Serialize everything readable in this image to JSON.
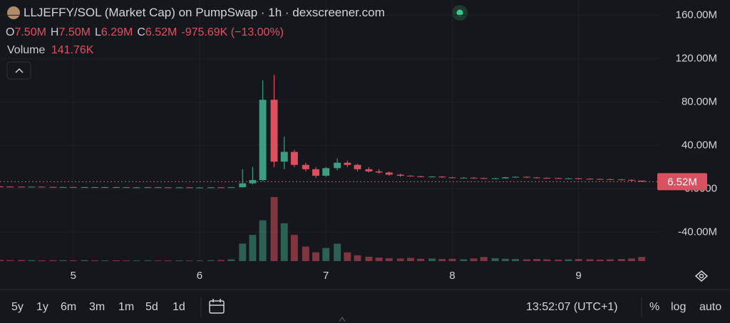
{
  "header": {
    "title": "LLJEFFY/SOL (Market Cap) on PumpSwap · 1h · dexscreener.com",
    "ohlc": [
      {
        "key": "O",
        "value": "7.50M"
      },
      {
        "key": "H",
        "value": "7.50M"
      },
      {
        "key": "L",
        "value": "6.29M"
      },
      {
        "key": "C",
        "value": "6.52M"
      }
    ],
    "change": "-975.69K (−13.00%)",
    "volume_label": "Volume",
    "volume_value": "141.76K"
  },
  "chart_data": {
    "type": "candlestick",
    "x": [
      4.42,
      4.5,
      4.59,
      4.67,
      4.75,
      4.84,
      4.92,
      5.0,
      5.09,
      5.17,
      5.25,
      5.34,
      5.42,
      5.5,
      5.59,
      5.67,
      5.75,
      5.84,
      5.92,
      6.0,
      6.09,
      6.17,
      6.25,
      6.34,
      6.42,
      6.5,
      6.59,
      6.67,
      6.75,
      6.84,
      6.92,
      7.0,
      7.09,
      7.17,
      7.25,
      7.34,
      7.42,
      7.5,
      7.59,
      7.67,
      7.75,
      7.84,
      7.92,
      8.0,
      8.09,
      8.17,
      8.25,
      8.34,
      8.42,
      8.5,
      8.59,
      8.67,
      8.75,
      8.84,
      8.92,
      9.0,
      9.09,
      9.17,
      9.25,
      9.34,
      9.42,
      9.5
    ],
    "open": [
      2.1,
      2.0,
      1.9,
      1.8,
      1.9,
      1.7,
      1.6,
      1.6,
      1.5,
      1.5,
      1.4,
      1.5,
      1.4,
      1.3,
      1.3,
      1.4,
      1.3,
      1.2,
      1.3,
      1.2,
      1.2,
      1.3,
      1.2,
      1.4,
      5,
      8,
      82,
      25,
      34,
      22,
      18,
      12,
      19,
      24,
      22,
      18,
      16,
      15,
      13,
      12,
      11.5,
      11,
      11.2,
      10.5,
      10,
      10.2,
      9.8,
      9.5,
      9.6,
      10.5,
      11,
      10.4,
      10,
      9.8,
      9.5,
      9.6,
      9.2,
      9,
      8.8,
      8.6,
      8.2,
      7.5
    ],
    "high": [
      2.3,
      2.2,
      2.1,
      2.1,
      2.1,
      1.9,
      1.8,
      1.8,
      1.7,
      1.7,
      1.7,
      1.7,
      1.6,
      1.5,
      1.6,
      1.6,
      1.5,
      1.5,
      1.5,
      1.4,
      1.5,
      1.5,
      1.6,
      18,
      20,
      100,
      105,
      48,
      36,
      24,
      20,
      20,
      28,
      26,
      23,
      20,
      18,
      16,
      14,
      12.4,
      11.9,
      11.6,
      11.6,
      10.9,
      10.6,
      10.6,
      10.2,
      10,
      10.9,
      11.4,
      11.4,
      10.8,
      10.4,
      10.2,
      10,
      10,
      9.6,
      9.4,
      9.2,
      9,
      8.6,
      7.5
    ],
    "low": [
      1.8,
      1.7,
      1.6,
      1.6,
      1.5,
      1.4,
      1.4,
      1.3,
      1.3,
      1.2,
      1.2,
      1.2,
      1.1,
      1.1,
      1.1,
      1.1,
      1.0,
      1.0,
      1.0,
      1.0,
      1.0,
      1.0,
      1.0,
      1.3,
      4,
      7,
      20,
      18,
      20,
      16,
      10,
      11,
      17,
      20,
      16,
      15,
      14,
      12,
      11,
      11.1,
      10.6,
      10.6,
      10.1,
      9.6,
      9.6,
      9.4,
      9.1,
      9.1,
      9.2,
      10.1,
      10,
      9.6,
      9.4,
      9.1,
      9.1,
      8.8,
      8.6,
      8.4,
      8.2,
      7.8,
      7.1,
      6.29
    ],
    "close": [
      2.0,
      1.9,
      1.8,
      1.9,
      1.7,
      1.6,
      1.6,
      1.5,
      1.5,
      1.4,
      1.5,
      1.4,
      1.3,
      1.3,
      1.4,
      1.3,
      1.2,
      1.3,
      1.2,
      1.2,
      1.3,
      1.2,
      1.4,
      5,
      8,
      82,
      25,
      34,
      22,
      18,
      12,
      19,
      24,
      22,
      18,
      16,
      15,
      13,
      12,
      11.5,
      11,
      11.2,
      10.5,
      10,
      10.2,
      9.8,
      9.5,
      9.6,
      10.5,
      11,
      10.4,
      10,
      9.8,
      9.5,
      9.6,
      9.2,
      9,
      8.8,
      8.6,
      8.2,
      7.5,
      6.52
    ],
    "volume": [
      40,
      30,
      35,
      30,
      25,
      30,
      28,
      25,
      30,
      25,
      22,
      25,
      20,
      22,
      25,
      20,
      22,
      25,
      20,
      22,
      30,
      35,
      60,
      600,
      900,
      1400,
      2200,
      1300,
      900,
      500,
      300,
      450,
      600,
      300,
      200,
      150,
      120,
      100,
      90,
      110,
      80,
      90,
      70,
      80,
      60,
      90,
      140,
      100,
      80,
      70,
      60,
      70,
      60,
      50,
      60,
      70,
      60,
      50,
      60,
      70,
      90,
      141.76
    ],
    "up_color": "#3e9c80",
    "down_color": "#d9505e",
    "xlim": [
      4.42,
      9.64
    ],
    "xticks": [
      5,
      6,
      7,
      8,
      9
    ],
    "ylim": [
      -68,
      174
    ],
    "yticks": [
      {
        "value": 160,
        "label": "160.00M"
      },
      {
        "value": 120,
        "label": "120.00M"
      },
      {
        "value": 80,
        "label": "80.00M"
      },
      {
        "value": 40,
        "label": "40.00M"
      },
      {
        "value": 0,
        "label": "0.0000"
      },
      {
        "value": -40,
        "label": "-40.00M"
      }
    ],
    "price_line": {
      "value": 6.52,
      "label": "6.52M"
    },
    "grid": true
  },
  "toolbar": {
    "ranges": [
      "5y",
      "1y",
      "6m",
      "3m",
      "1m",
      "5d",
      "1d"
    ],
    "clock": "13:52:07 (UTC+1)",
    "options": [
      "%",
      "log",
      "auto"
    ]
  }
}
